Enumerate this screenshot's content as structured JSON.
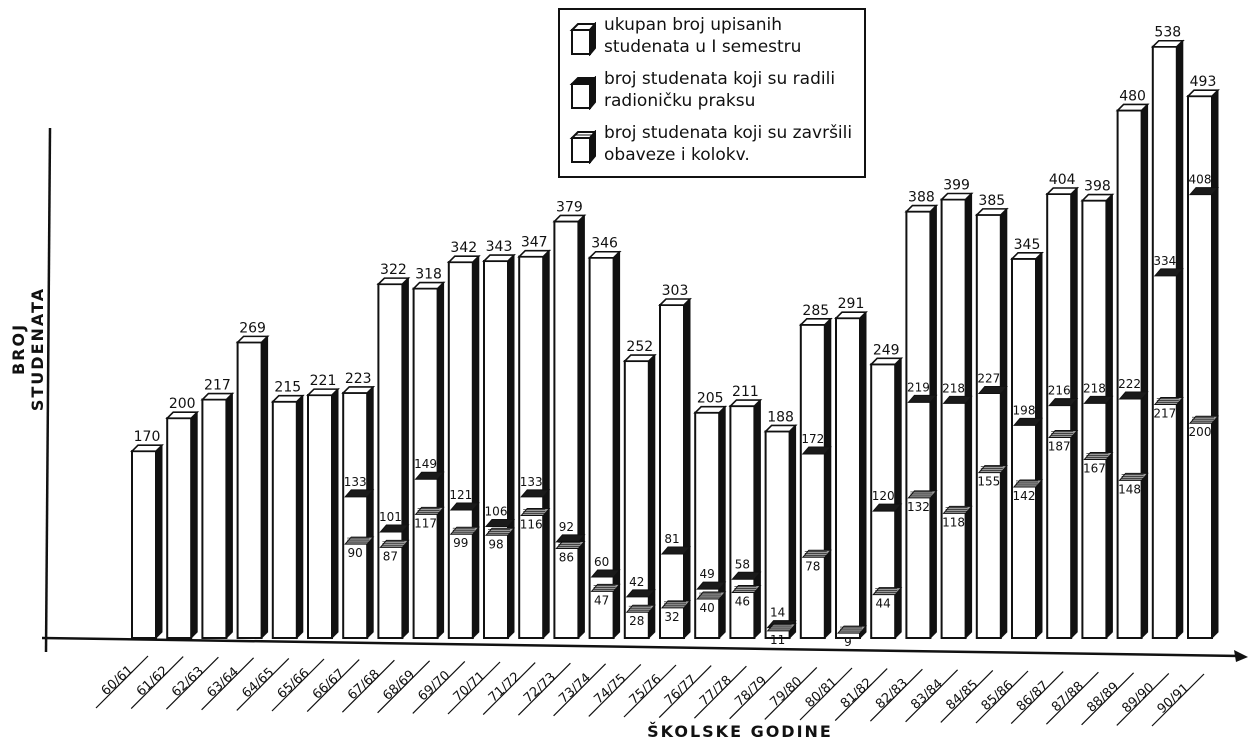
{
  "legend": {
    "total": "ukupan broj upisanih studenata u I semestru",
    "practice": "broj studenata koji su radili radioničku praksu",
    "completed": "broj studenata koji su završili obaveze i kolokv."
  },
  "colors": {
    "total": "#ffffff",
    "practice": "#1a1a1a",
    "completed": "#9a9a9a",
    "ink": "#111111"
  },
  "chart_data": {
    "type": "bar",
    "xlabel": "ŠKOLSKE GODINE",
    "ylabel": "BROJ STUDENATA",
    "ylim": [
      0,
      560
    ],
    "grid": false,
    "legend_position": "top-center",
    "categories": [
      "60/61",
      "61/62",
      "62/63",
      "63/64",
      "64/65",
      "65/66",
      "66/67",
      "67/68",
      "68/69",
      "69/70",
      "70/71",
      "71/72",
      "72/73",
      "73/74",
      "74/75",
      "75/76",
      "76/77",
      "77/78",
      "78/79",
      "79/80",
      "80/81",
      "81/82",
      "82/83",
      "83/84",
      "84/85",
      "85/86",
      "86/87",
      "87/88",
      "88/89",
      "89/90",
      "90/91"
    ],
    "series": [
      {
        "name": "ukupan broj upisanih studenata u I semestru",
        "values": [
          170,
          200,
          217,
          269,
          215,
          221,
          223,
          322,
          318,
          342,
          343,
          347,
          379,
          346,
          252,
          303,
          205,
          211,
          188,
          285,
          291,
          249,
          388,
          399,
          385,
          345,
          404,
          398,
          480,
          538,
          493
        ]
      },
      {
        "name": "broj studenata koji su radili radioničku praksu",
        "values": [
          null,
          null,
          null,
          null,
          null,
          null,
          133,
          101,
          149,
          121,
          106,
          133,
          92,
          60,
          42,
          81,
          49,
          58,
          14,
          172,
          null,
          120,
          219,
          218,
          227,
          198,
          216,
          218,
          222,
          334,
          408
        ]
      },
      {
        "name": "broj studenata koji su završili obaveze i kolokv.",
        "values": [
          null,
          null,
          null,
          null,
          null,
          null,
          90,
          87,
          117,
          99,
          98,
          116,
          86,
          47,
          28,
          32,
          40,
          46,
          11,
          78,
          9,
          44,
          132,
          118,
          155,
          142,
          187,
          167,
          148,
          217,
          200
        ]
      }
    ]
  }
}
